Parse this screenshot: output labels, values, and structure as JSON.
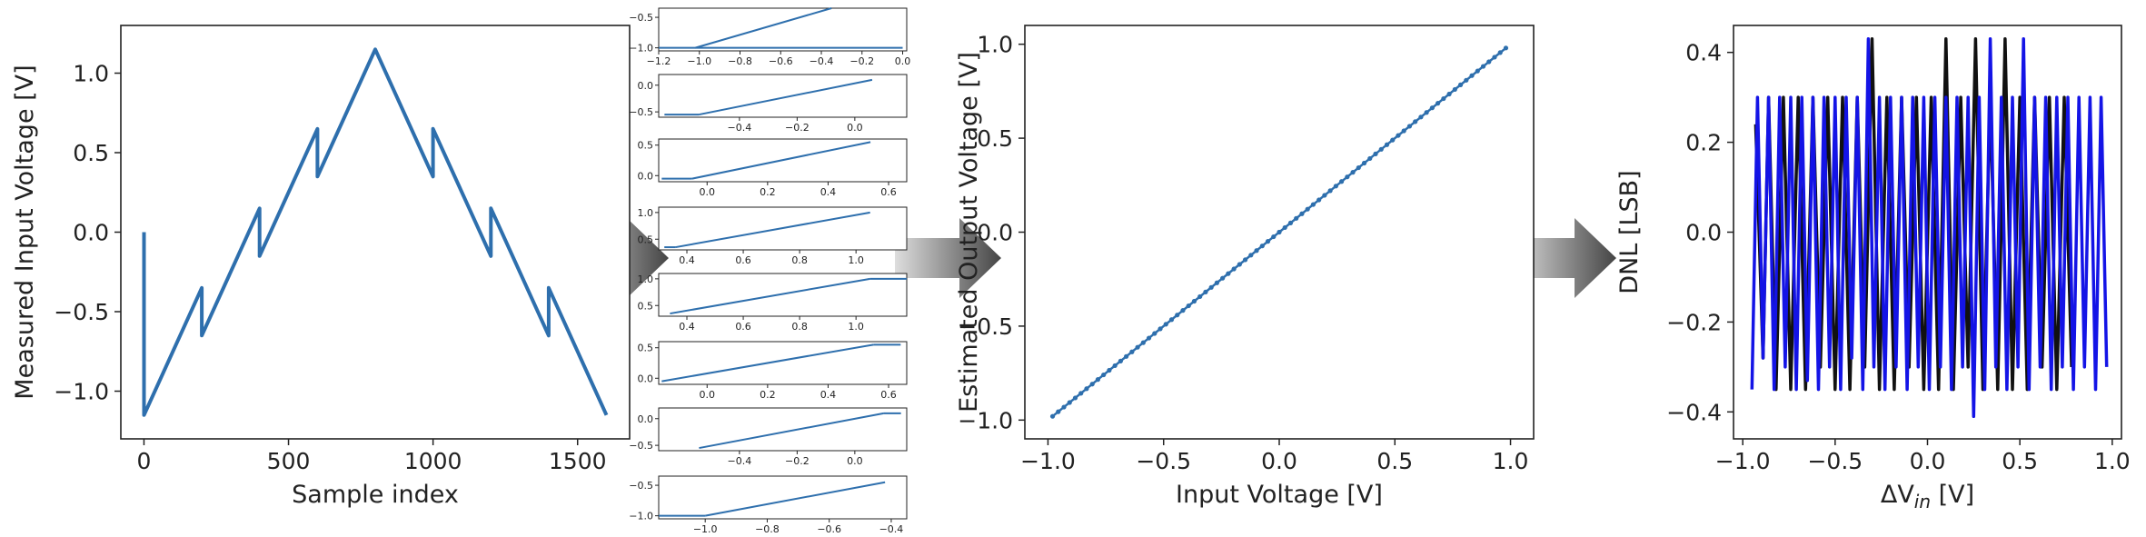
{
  "chart_data": [
    {
      "id": "plot1",
      "type": "line",
      "xlabel": "Sample index",
      "ylabel": "Measured Input Voltage [V]",
      "xlim": [
        -80,
        1680
      ],
      "ylim": [
        -1.3,
        1.3
      ],
      "xticks": [
        "0",
        "500",
        "1000",
        "1500"
      ],
      "yticks": [
        "−1.0",
        "−0.5",
        "0.0",
        "0.5",
        "1.0"
      ],
      "series": [
        {
          "color": "#2e6fad",
          "x": [
            0,
            0,
            0,
            200,
            200,
            400,
            400,
            600,
            600,
            800,
            1000,
            1000,
            1200,
            1200,
            1400,
            1400,
            1600
          ],
          "y": [
            0.0,
            -0.55,
            -1.15,
            -0.35,
            -0.65,
            0.15,
            -0.15,
            0.65,
            0.35,
            1.15,
            0.35,
            0.65,
            -0.15,
            0.15,
            -0.65,
            -0.35,
            -1.15
          ]
        }
      ]
    },
    {
      "id": "plot2",
      "type": "line",
      "xlabel": "Input Voltage [V]",
      "ylabel": "Estimated Output Voltage [V]",
      "xlim": [
        -1.1,
        1.1
      ],
      "ylim": [
        -1.1,
        1.1
      ],
      "xticks": [
        "−1.0",
        "−0.5",
        "0.0",
        "0.5",
        "1.0"
      ],
      "yticks": [
        "−1.0",
        "−0.5",
        "0.0",
        "0.5",
        "1.0"
      ],
      "series": [
        {
          "color": "#2e6fad",
          "x": [
            -0.98,
            0.98
          ],
          "y": [
            -0.98,
            0.98
          ]
        }
      ]
    },
    {
      "id": "plot3",
      "type": "line",
      "xlabel": "ΔV",
      "xlabel_sub": "in",
      "xlabel_unit": " [V]",
      "ylabel": "DNL [LSB]",
      "xlim": [
        -1.05,
        1.05
      ],
      "ylim": [
        -0.46,
        0.46
      ],
      "xticks": [
        "−1.0",
        "−0.5",
        "0.0",
        "0.5",
        "1.0"
      ],
      "yticks": [
        "−0.4",
        "−0.2",
        "0.0",
        "0.2",
        "0.4"
      ],
      "series": [
        {
          "color": "#111111",
          "x": [
            -0.93,
            -0.89,
            -0.86,
            -0.82,
            -0.78,
            -0.74,
            -0.7,
            -0.66,
            -0.62,
            -0.58,
            -0.54,
            -0.5,
            -0.46,
            -0.42,
            -0.38,
            -0.34,
            -0.3,
            -0.26,
            -0.22,
            -0.18,
            -0.14,
            -0.1,
            -0.06,
            -0.02,
            0.02,
            0.06,
            0.1,
            0.14,
            0.18,
            0.22,
            0.26,
            0.3,
            0.34,
            0.38,
            0.42,
            0.46,
            0.5,
            0.54,
            0.58,
            0.62,
            0.66,
            0.7,
            0.74,
            0.78
          ],
          "y": [
            0.24,
            -0.28,
            0.3,
            -0.35,
            0.3,
            -0.35,
            0.3,
            -0.35,
            0.3,
            -0.3,
            0.3,
            -0.35,
            0.3,
            -0.35,
            0.3,
            -0.3,
            0.43,
            -0.35,
            0.3,
            -0.35,
            0.3,
            -0.3,
            0.3,
            -0.35,
            0.3,
            -0.35,
            0.43,
            -0.35,
            0.3,
            -0.3,
            0.43,
            -0.35,
            0.3,
            -0.35,
            0.43,
            -0.35,
            0.3,
            -0.35,
            0.3,
            -0.3,
            0.3,
            -0.35,
            0.3,
            -0.3
          ]
        },
        {
          "color": "#1414e6",
          "x": [
            -0.95,
            -0.92,
            -0.89,
            -0.86,
            -0.83,
            -0.8,
            -0.77,
            -0.74,
            -0.71,
            -0.68,
            -0.65,
            -0.62,
            -0.59,
            -0.56,
            -0.53,
            -0.5,
            -0.47,
            -0.44,
            -0.41,
            -0.38,
            -0.35,
            -0.32,
            -0.29,
            -0.26,
            -0.23,
            -0.2,
            -0.17,
            -0.14,
            -0.11,
            -0.08,
            -0.05,
            -0.02,
            0.01,
            0.04,
            0.07,
            0.1,
            0.13,
            0.16,
            0.19,
            0.22,
            0.25,
            0.28,
            0.31,
            0.34,
            0.37,
            0.4,
            0.43,
            0.46,
            0.49,
            0.52,
            0.55,
            0.58,
            0.61,
            0.64,
            0.67,
            0.7,
            0.73,
            0.76,
            0.79,
            0.82,
            0.85,
            0.88,
            0.91,
            0.94,
            0.97
          ],
          "y": [
            -0.35,
            0.3,
            -0.28,
            0.3,
            -0.35,
            0.3,
            -0.3,
            0.3,
            -0.35,
            0.3,
            -0.33,
            0.3,
            -0.35,
            0.3,
            -0.3,
            0.3,
            -0.35,
            0.3,
            -0.28,
            0.3,
            -0.35,
            0.43,
            -0.3,
            0.3,
            -0.35,
            0.3,
            -0.3,
            0.3,
            -0.35,
            0.3,
            -0.3,
            0.3,
            -0.35,
            0.3,
            -0.3,
            0.3,
            -0.35,
            0.3,
            -0.3,
            0.3,
            -0.41,
            0.3,
            -0.35,
            0.43,
            -0.3,
            0.3,
            -0.35,
            0.3,
            -0.3,
            0.43,
            -0.35,
            0.3,
            -0.3,
            0.3,
            -0.35,
            0.3,
            -0.3,
            0.3,
            -0.35,
            0.3,
            -0.3,
            0.3,
            -0.35,
            0.3,
            -0.3
          ]
        }
      ]
    }
  ],
  "mini_plots": [
    {
      "yticks": [
        "−0.5",
        "−1.0"
      ],
      "ylim": [
        -1.05,
        -0.35
      ],
      "xticks": [
        "−1.2",
        "−1.0",
        "−0.8",
        "−0.6",
        "−0.4",
        "−0.2",
        "0.0"
      ],
      "xlim": [
        -1.2,
        0.02
      ],
      "line": {
        "x": [
          -1.02,
          -0.35
        ],
        "y": [
          -1.0,
          -0.35
        ]
      },
      "floor": {
        "x": [
          -1.2,
          0.0
        ],
        "y": -1.0
      }
    },
    {
      "yticks": [
        "0.0",
        "−0.5"
      ],
      "ylim": [
        -0.6,
        0.2
      ],
      "xticks": [
        "−0.4",
        "−0.2",
        "0.0"
      ],
      "xlim": [
        -0.68,
        0.18
      ],
      "line": {
        "x": [
          -0.54,
          0.06
        ],
        "y": [
          -0.55,
          0.1
        ]
      },
      "floor": {
        "x": [
          -0.66,
          -0.54
        ],
        "y": -0.55
      }
    },
    {
      "yticks": [
        "0.5",
        "0.0"
      ],
      "ylim": [
        -0.1,
        0.6
      ],
      "xticks": [
        "0.0",
        "0.2",
        "0.4",
        "0.6"
      ],
      "xlim": [
        -0.16,
        0.66
      ],
      "line": {
        "x": [
          -0.05,
          0.54
        ],
        "y": [
          -0.05,
          0.55
        ]
      },
      "floor": {
        "x": [
          -0.15,
          -0.05
        ],
        "y": -0.05
      }
    },
    {
      "yticks": [
        "1.0",
        "0.5"
      ],
      "ylim": [
        0.3,
        1.1
      ],
      "xticks": [
        "0.4",
        "0.6",
        "0.8",
        "1.0"
      ],
      "xlim": [
        0.3,
        1.18
      ],
      "line": {
        "x": [
          0.36,
          1.05
        ],
        "y": [
          0.35,
          1.0
        ]
      },
      "floor": {
        "x": [
          0.32,
          0.36
        ],
        "y": 0.35
      }
    },
    {
      "yticks": [
        "1.0",
        "0.5"
      ],
      "ylim": [
        0.3,
        1.1
      ],
      "xticks": [
        "0.4",
        "0.6",
        "0.8",
        "1.0"
      ],
      "xlim": [
        0.3,
        1.18
      ],
      "line": {
        "x": [
          0.34,
          1.05
        ],
        "y": [
          0.35,
          1.0
        ]
      },
      "floor": {
        "x": [
          1.05,
          1.18
        ],
        "y": 1.0
      }
    },
    {
      "yticks": [
        "0.5",
        "0.0"
      ],
      "ylim": [
        -0.1,
        0.6
      ],
      "xticks": [
        "0.0",
        "0.2",
        "0.4",
        "0.6"
      ],
      "xlim": [
        -0.16,
        0.66
      ],
      "line": {
        "x": [
          -0.15,
          0.55
        ],
        "y": [
          -0.05,
          0.55
        ]
      },
      "floor": {
        "x": [
          0.55,
          0.64
        ],
        "y": 0.55
      }
    },
    {
      "yticks": [
        "0.0",
        "−0.5"
      ],
      "ylim": [
        -0.6,
        0.2
      ],
      "xticks": [
        "−0.4",
        "−0.2",
        "0.0"
      ],
      "xlim": [
        -0.68,
        0.18
      ],
      "line": {
        "x": [
          -0.54,
          0.1
        ],
        "y": [
          -0.55,
          0.1
        ]
      },
      "floor": {
        "x": [
          0.1,
          0.16
        ],
        "y": 0.1
      }
    },
    {
      "yticks": [
        "−0.5",
        "−1.0"
      ],
      "ylim": [
        -1.05,
        -0.35
      ],
      "xticks": [
        "−1.0",
        "−0.8",
        "−0.6",
        "−0.4"
      ],
      "xlim": [
        -1.15,
        -0.35
      ],
      "line": {
        "x": [
          -1.0,
          -0.42
        ],
        "y": [
          -1.0,
          -0.45
        ]
      },
      "floor": {
        "x": [
          -1.15,
          -1.0
        ],
        "y": -1.0
      }
    }
  ],
  "colors": {
    "arrow_dark": "#3b3b3b",
    "arrow_light": "#dcdcdc",
    "axis": "#222222"
  }
}
